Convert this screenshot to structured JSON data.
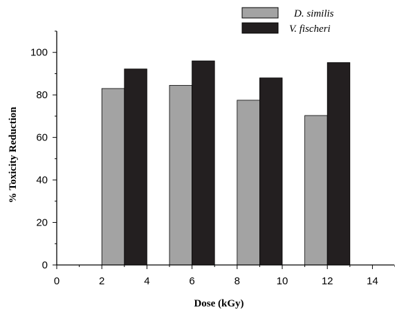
{
  "chart_data": {
    "type": "bar",
    "xlabel": "Dose (kGy)",
    "ylabel": "% Toxicity Reduction",
    "xlim": [
      0,
      15
    ],
    "ylim": [
      0,
      110
    ],
    "x_ticks": [
      0,
      2,
      4,
      6,
      8,
      10,
      12,
      14
    ],
    "y_ticks": [
      0,
      20,
      40,
      60,
      80,
      100
    ],
    "x_tick_labels": [
      "0",
      "2",
      "4",
      "6",
      "8",
      "10",
      "12",
      "14"
    ],
    "y_tick_labels": [
      "0",
      "20",
      "40",
      "60",
      "80",
      "100"
    ],
    "categories": [
      "3",
      "6",
      "9",
      "12"
    ],
    "x": [
      3,
      6,
      9,
      12
    ],
    "bar_width_data_units": 1.0,
    "legend_position": "top-right",
    "grid": false,
    "series": [
      {
        "name": "D. similis",
        "color": "#a3a3a3",
        "values": [
          83,
          84.5,
          77.5,
          70.3
        ]
      },
      {
        "name": "V. fischeri",
        "color": "#231f20",
        "values": [
          92.2,
          96,
          88,
          95.2
        ]
      }
    ]
  }
}
